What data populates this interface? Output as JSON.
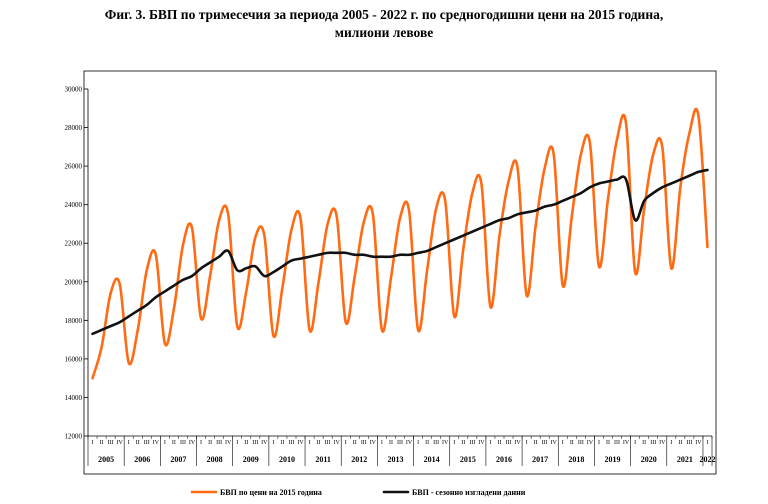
{
  "chart_data": {
    "type": "line",
    "title_line1": "Фиг. 3. БВП по тримесечия за периода 2005 - 2022 г. по средногодишни цени на 2015 година,",
    "title_line2": "милиони левове",
    "xlabel": "",
    "ylabel": "",
    "ylim": [
      12000,
      30000
    ],
    "yticks": [
      12000,
      14000,
      16000,
      18000,
      20000,
      22000,
      24000,
      26000,
      28000,
      30000
    ],
    "quarter_labels": [
      "I",
      "II",
      "III",
      "IV"
    ],
    "years": [
      "2005",
      "2006",
      "2007",
      "2008",
      "2009",
      "2010",
      "2011",
      "2012",
      "2013",
      "2014",
      "2015",
      "2016",
      "2017",
      "2018",
      "2019",
      "2020",
      "2021",
      "2022"
    ],
    "grid": false,
    "legend_position": "bottom",
    "series": [
      {
        "name": "БВП  по цени на 2015 година",
        "color": "#ff6a13",
        "values": [
          15000,
          16600,
          19400,
          19900,
          15800,
          17500,
          20600,
          21400,
          16800,
          18600,
          21900,
          22800,
          18100,
          20300,
          23200,
          23500,
          17700,
          19500,
          22300,
          22400,
          17200,
          19700,
          22700,
          23300,
          17500,
          20000,
          23000,
          23400,
          17900,
          20300,
          23100,
          23500,
          17500,
          20200,
          23300,
          23700,
          17500,
          20600,
          23800,
          24200,
          18200,
          21700,
          24600,
          25100,
          18700,
          22400,
          25200,
          25900,
          19300,
          22900,
          25900,
          26600,
          19800,
          23400,
          26600,
          27200,
          20800,
          24300,
          27400,
          28200,
          20500,
          23800,
          26600,
          27000,
          20700,
          24900,
          27700,
          28600,
          21800
        ]
      },
      {
        "name": "БВП - сезонно изгладени данни",
        "color": "#111111",
        "values": [
          17300,
          17500,
          17700,
          17900,
          18200,
          18500,
          18800,
          19200,
          19500,
          19800,
          20100,
          20300,
          20700,
          21000,
          21300,
          21600,
          20600,
          20700,
          20800,
          20300,
          20500,
          20800,
          21100,
          21200,
          21300,
          21400,
          21500,
          21500,
          21500,
          21400,
          21400,
          21300,
          21300,
          21300,
          21400,
          21400,
          21500,
          21600,
          21800,
          22000,
          22200,
          22400,
          22600,
          22800,
          23000,
          23200,
          23300,
          23500,
          23600,
          23700,
          23900,
          24000,
          24200,
          24400,
          24600,
          24900,
          25100,
          25200,
          25300,
          25300,
          23200,
          24200,
          24600,
          24900,
          25100,
          25300,
          25500,
          25700,
          25800
        ]
      }
    ]
  }
}
